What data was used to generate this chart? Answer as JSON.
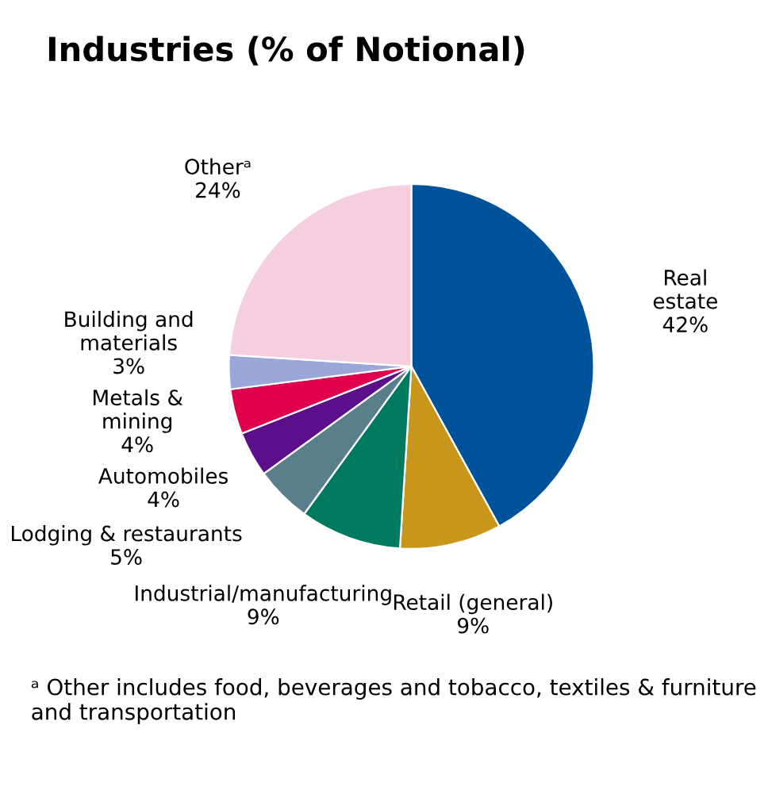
{
  "chart_data": {
    "type": "pie",
    "title": "Industries (% of Notional)",
    "categories": [
      "Real\nestate",
      "Retail (general)",
      "Industrial/manufacturing",
      "Lodging & restaurants",
      "Automobiles",
      "Metals &\nmining",
      "Building and\nmaterials",
      "Otherᵃ"
    ],
    "values": [
      42,
      9,
      9,
      5,
      4,
      4,
      3,
      24
    ],
    "value_labels": [
      "42%",
      "9%",
      "9%",
      "5%",
      "4%",
      "4%",
      "3%",
      "24%"
    ],
    "colors": [
      "#00529b",
      "#c8961a",
      "#007a5e",
      "#5a7f8c",
      "#5b0f8b",
      "#e0004d",
      "#9aa7d8",
      "#f5cfdf"
    ],
    "legend": false,
    "annotations": [
      "ᵃ Other includes food, beverages and tobacco, textiles & furniture and transportation"
    ]
  }
}
